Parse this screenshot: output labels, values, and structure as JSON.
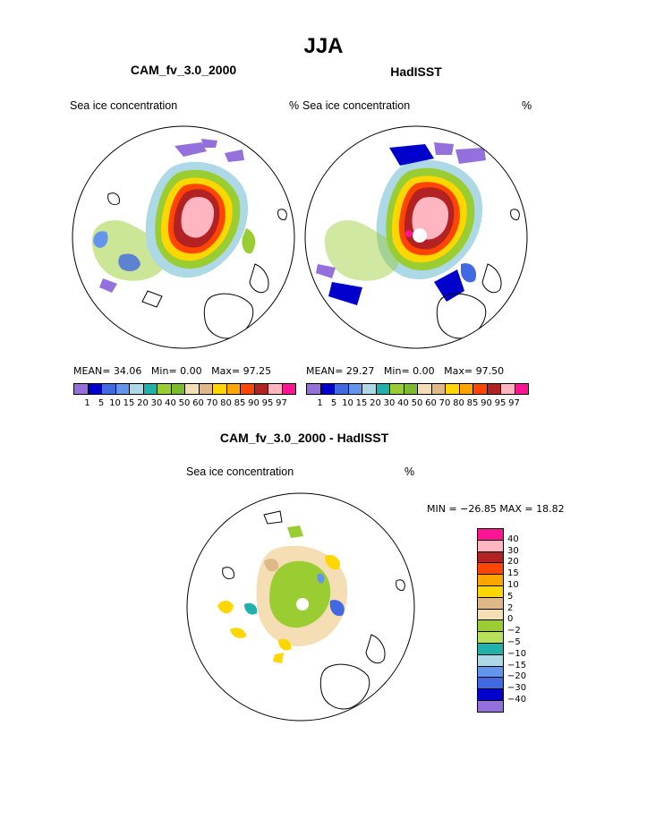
{
  "title": "JJA",
  "panels": [
    {
      "title": "CAM_fv_3.0_2000",
      "field_label": "Sea ice concentration",
      "units": "%",
      "mean_label": "MEAN=",
      "mean_value": "34.06",
      "min_label": "Min=",
      "min_value": "0.00",
      "max_label": "Max=",
      "max_value": "97.25"
    },
    {
      "title": "HadISST",
      "field_label": "Sea ice concentration",
      "units": "%",
      "mean_label": "MEAN=",
      "mean_value": "29.27",
      "min_label": "Min=",
      "min_value": "0.00",
      "max_label": "Max=",
      "max_value": "97.50"
    }
  ],
  "colorbar": {
    "colors": [
      "#9370db",
      "#0000cd",
      "#4169e1",
      "#6495ed",
      "#add8e6",
      "#20b2aa",
      "#9acd32",
      "#7cbb2d",
      "#f5deb3",
      "#deb887",
      "#ffd700",
      "#ffa500",
      "#ff4500",
      "#b22222",
      "#ffb6c1",
      "#ff1493"
    ],
    "ticks": [
      "1",
      "5",
      "10",
      "15",
      "20",
      "30",
      "40",
      "50",
      "60",
      "70",
      "80",
      "85",
      "90",
      "95",
      "97"
    ]
  },
  "diff": {
    "title": "CAM_fv_3.0_2000 - HadISST",
    "field_label": "Sea ice concentration",
    "units": "%",
    "stats": "MIN = −26.85 MAX =   18.82",
    "legend": [
      {
        "label": "40",
        "color": "#ff1493"
      },
      {
        "label": "30",
        "color": "#ffb6c1"
      },
      {
        "label": "20",
        "color": "#b22222"
      },
      {
        "label": "15",
        "color": "#ff4500"
      },
      {
        "label": "10",
        "color": "#ffa500"
      },
      {
        "label": "5",
        "color": "#ffd700"
      },
      {
        "label": "2",
        "color": "#deb887"
      },
      {
        "label": "0",
        "color": "#f5deb3"
      },
      {
        "label": "−2",
        "color": "#9acd32"
      },
      {
        "label": "−5",
        "color": "#b8e05a"
      },
      {
        "label": "−10",
        "color": "#20b2aa"
      },
      {
        "label": "−15",
        "color": "#add8e6"
      },
      {
        "label": "−20",
        "color": "#6495ed"
      },
      {
        "label": "−30",
        "color": "#4169e1"
      },
      {
        "label": "−40",
        "color": "#0000cd"
      },
      {
        "label": "",
        "color": "#9370db"
      }
    ]
  }
}
